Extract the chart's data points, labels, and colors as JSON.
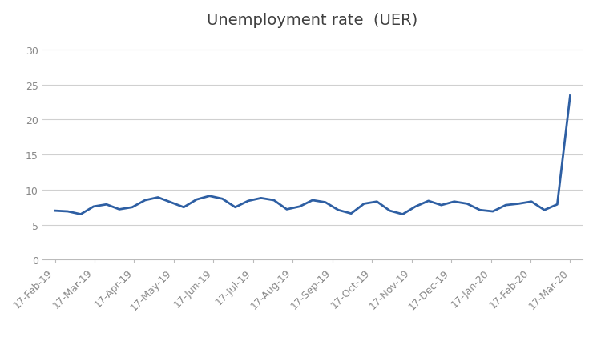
{
  "title": "Unemployment rate  (UER)",
  "title_fontsize": 14,
  "title_color": "#404040",
  "line_color": "#2E5FA3",
  "line_width": 2.0,
  "background_color": "#ffffff",
  "ylim": [
    0,
    32
  ],
  "yticks": [
    0,
    5,
    10,
    15,
    20,
    25,
    30
  ],
  "x_labels": [
    "17-Feb-19",
    "17-Mar-19",
    "17-Apr-19",
    "17-May-19",
    "17-Jun-19",
    "17-Jul-19",
    "17-Aug-19",
    "17-Sep-19",
    "17-Oct-19",
    "17-Nov-19",
    "17-Dec-19",
    "17-Jan-20",
    "17-Feb-20",
    "17-Mar-20"
  ],
  "values": [
    7.0,
    6.9,
    6.5,
    7.6,
    7.9,
    7.2,
    7.5,
    8.5,
    8.9,
    8.2,
    7.5,
    8.6,
    9.1,
    8.7,
    7.5,
    8.4,
    8.8,
    8.5,
    7.2,
    7.6,
    8.5,
    8.2,
    7.1,
    6.6,
    8.0,
    8.3,
    7.0,
    6.5,
    7.6,
    8.4,
    7.8,
    8.3,
    8.0,
    7.1,
    6.9,
    7.8,
    8.0,
    8.3,
    7.1,
    7.9,
    23.4
  ],
  "grid_color": "#d0d0d0",
  "tick_label_fontsize": 9,
  "tick_color": "#888888"
}
